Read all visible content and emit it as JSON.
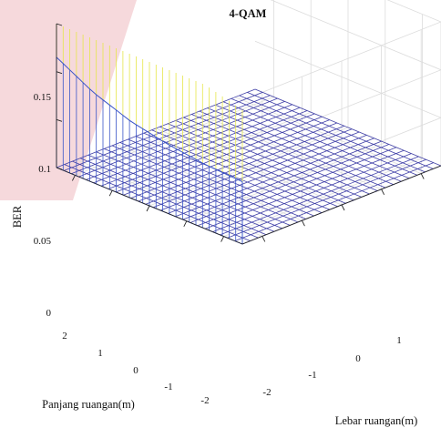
{
  "chart_data": {
    "type": "surface",
    "title": "4-QAM",
    "xlabel": "Panjang ruangan(m)",
    "ylabel": "Lebar ruangan(m)",
    "zlabel": "BER",
    "x_ticks": [
      "2",
      "1",
      "0",
      "-1",
      "-2"
    ],
    "y_ticks": [
      "-2",
      "-1",
      "0",
      "1"
    ],
    "z_ticks": [
      "0.15",
      "0.1",
      "0.05",
      "0"
    ],
    "xlim": [
      -2.5,
      2.5
    ],
    "ylim": [
      -2.5,
      2.5
    ],
    "zlim": [
      0,
      0.15
    ],
    "grid": true,
    "edge_profile": {
      "x": [
        2.5,
        1.5,
        0.5,
        -0.5,
        -1.5,
        -2.5
      ],
      "ber_low_edge": [
        0.115,
        0.094,
        0.08,
        0.072,
        0.067,
        0.065
      ],
      "ber_high_edge": [
        0.15,
        0.15,
        0.15,
        0.15,
        0.15,
        0.14
      ]
    },
    "floor_ber": 0,
    "colors": {
      "low_edge": "#3a55c8",
      "high_edge": "#e6e64a",
      "floor": "#4040a8"
    }
  }
}
